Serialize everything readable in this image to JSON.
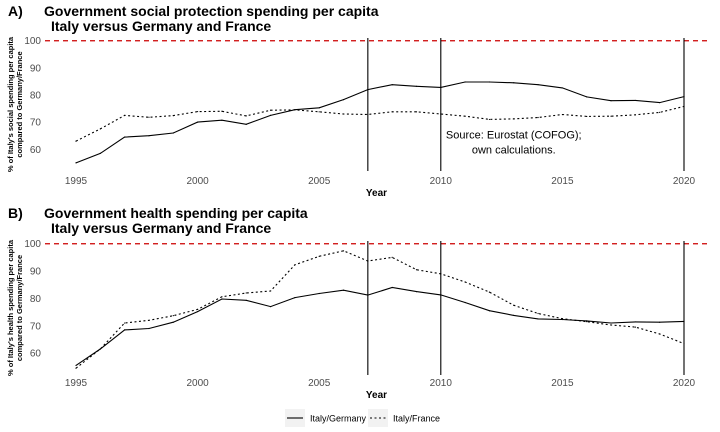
{
  "chart_data": [
    {
      "type": "line",
      "panel_label": "A)",
      "title": "Government social protection spending per capita",
      "subtitle": "Italy versus Germany and France",
      "xlabel": "Year",
      "ylabel_lines": [
        "% of Italy's social spending per capita",
        "compared to Germany/France"
      ],
      "xlim": [
        1995,
        2020
      ],
      "ylim": [
        52,
        101
      ],
      "xticks": [
        1995,
        2000,
        2005,
        2010,
        2015,
        2020
      ],
      "yticks": [
        60,
        70,
        80,
        90,
        100
      ],
      "reference_line": {
        "y": 100,
        "color": "#cc0000"
      },
      "vertical_lines": [
        2007,
        2010,
        2020
      ],
      "annotation_lines": [
        "Source: Eurostat (COFOG);",
        "own calculations."
      ],
      "annotation_anchor": {
        "x": 2013,
        "y": 64
      },
      "x": [
        1995,
        1996,
        1997,
        1998,
        1999,
        2000,
        2001,
        2002,
        2003,
        2004,
        2005,
        2006,
        2007,
        2008,
        2009,
        2010,
        2011,
        2012,
        2013,
        2014,
        2015,
        2016,
        2017,
        2018,
        2019,
        2020
      ],
      "series": [
        {
          "name": "Italy/Germany",
          "dash": "solid",
          "values": [
            55,
            58.5,
            64.5,
            65,
            66,
            70,
            70.7,
            69.2,
            72.5,
            74.6,
            75.3,
            78.3,
            82,
            83.8,
            83.2,
            82.8,
            84.8,
            84.8,
            84.5,
            83.8,
            82.6,
            79.3,
            77.9,
            78,
            77.2,
            79.4
          ]
        },
        {
          "name": "Italy/France",
          "dash": "dotted",
          "values": [
            63,
            67.5,
            72.5,
            71.8,
            72.4,
            73.9,
            74,
            72.3,
            74.4,
            74.5,
            73.8,
            73,
            72.8,
            73.8,
            73.8,
            73,
            72.2,
            71,
            71.2,
            71.7,
            72.8,
            72.1,
            72.2,
            72.7,
            73.6,
            75.8
          ]
        }
      ]
    },
    {
      "type": "line",
      "panel_label": "B)",
      "title": "Government health spending per capita",
      "subtitle": "Italy versus Germany and France",
      "xlabel": "Year",
      "ylabel_lines": [
        "% of Italy's health spending per capita",
        "compared to Germany/France"
      ],
      "xlim": [
        1995,
        2020
      ],
      "ylim": [
        52,
        101
      ],
      "xticks": [
        1995,
        2000,
        2005,
        2010,
        2015,
        2020
      ],
      "yticks": [
        60,
        70,
        80,
        90,
        100
      ],
      "reference_line": {
        "y": 100,
        "color": "#cc0000"
      },
      "vertical_lines": [
        2007,
        2010,
        2020
      ],
      "x": [
        1995,
        1996,
        1997,
        1998,
        1999,
        2000,
        2001,
        2002,
        2003,
        2004,
        2005,
        2006,
        2007,
        2008,
        2009,
        2010,
        2011,
        2012,
        2013,
        2014,
        2015,
        2016,
        2017,
        2018,
        2019,
        2020
      ],
      "series": [
        {
          "name": "Italy/Germany",
          "dash": "solid",
          "values": [
            55.5,
            61.5,
            68.5,
            69,
            71.3,
            75.2,
            79.8,
            79.3,
            77,
            80.3,
            81.8,
            83,
            81.2,
            84,
            82.5,
            81.3,
            78.5,
            75.5,
            73.8,
            72.5,
            72.3,
            71.8,
            71,
            71.4,
            71.3,
            71.6
          ]
        },
        {
          "name": "Italy/France",
          "dash": "dotted",
          "values": [
            54.5,
            61.5,
            71,
            72,
            73.7,
            76,
            80.6,
            82,
            82.7,
            92.3,
            95.4,
            97.4,
            93.7,
            95,
            90.5,
            89,
            86,
            82.3,
            77.5,
            74.5,
            72.6,
            71.5,
            70.3,
            69.5,
            67,
            63.5
          ]
        }
      ]
    }
  ],
  "legend": {
    "items": [
      {
        "name": "Italy/Germany",
        "dash": "solid"
      },
      {
        "name": "Italy/France",
        "dash": "dotted"
      }
    ]
  }
}
